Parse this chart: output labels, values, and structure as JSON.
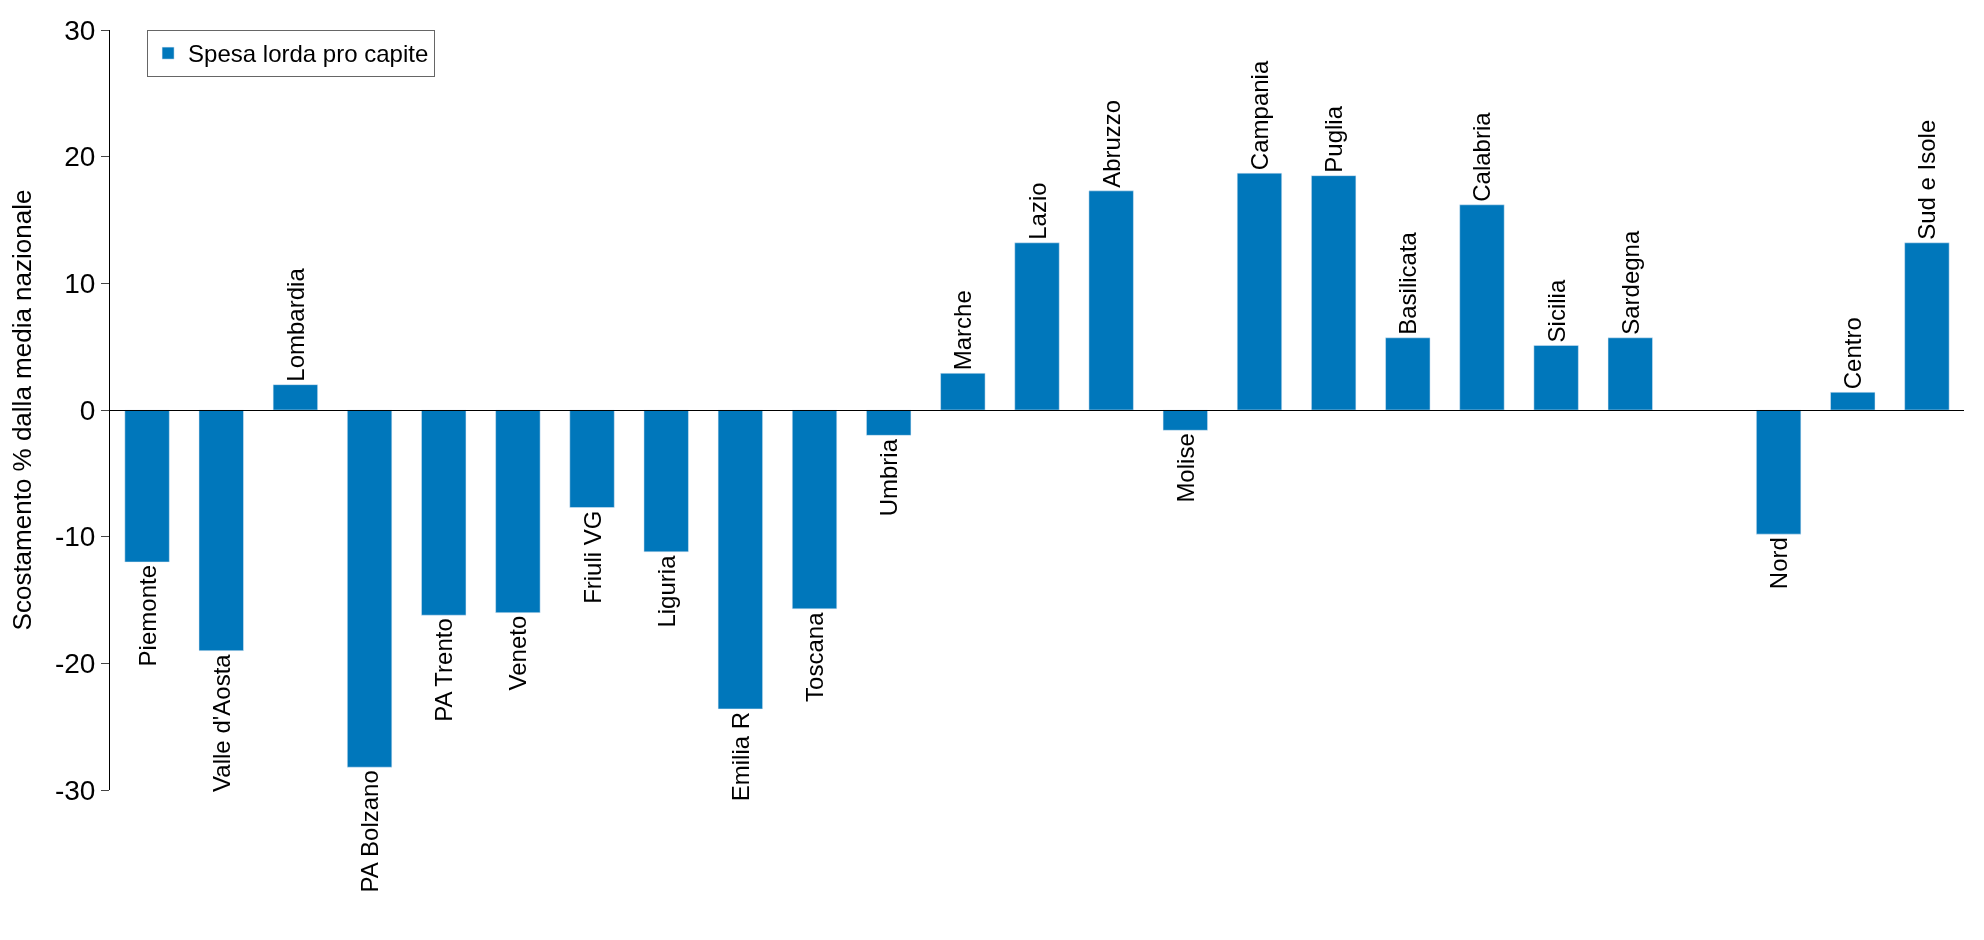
{
  "chart_data": {
    "type": "bar",
    "ylabel": "Scostamento % dalla media nazionale",
    "categories": [
      "Piemonte",
      "Valle d'Aosta",
      "Lombardia",
      "PA Bolzano",
      "PA Trento",
      "Veneto",
      "Friuli VG",
      "Liguria",
      "Emilia R",
      "Toscana",
      "Umbria",
      "Marche",
      "Lazio",
      "Abruzzo",
      "Molise",
      "Campania",
      "Puglia",
      "Basilicata",
      "Calabria",
      "Sicilia",
      "Sardegna",
      null,
      "Nord",
      "Centro",
      "Sud e Isole"
    ],
    "series": [
      {
        "name": "Spesa lorda pro capite",
        "color": "#0077bb",
        "values": [
          -12,
          -19,
          2,
          -28.2,
          -16.2,
          -16,
          -7.7,
          -11.2,
          -23.6,
          -15.7,
          -2,
          2.9,
          13.2,
          17.3,
          -1.6,
          18.7,
          18.5,
          5.7,
          16.2,
          5.1,
          5.7,
          null,
          -9.8,
          1.4,
          13.2
        ]
      }
    ],
    "ylim": [
      -30,
      30
    ],
    "yticks": [
      -30,
      -20,
      -10,
      0,
      10,
      20,
      30
    ],
    "legend": "top left",
    "tick_labels": "y"
  }
}
